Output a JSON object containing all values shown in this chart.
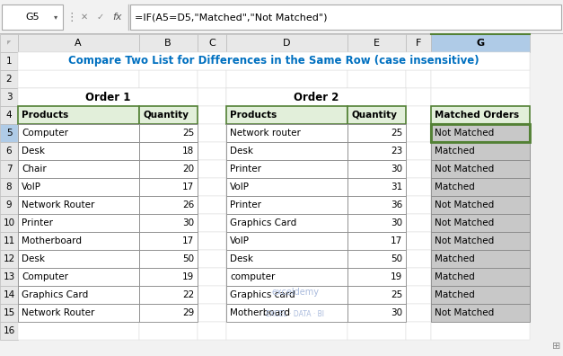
{
  "title": "Compare Two List for Differences in the Same Row (case insensitive)",
  "formula_bar_cell": "G5",
  "formula_bar_text": "=IF(A5=D5,\"Matched\",\"Not Matched\")",
  "order1_header": "Order 1",
  "order2_header": "Order 2",
  "table3_header": "Matched Orders",
  "order1_products": [
    "Computer",
    "Desk",
    "Chair",
    "VoIP",
    "Network Router",
    "Printer",
    "Motherboard",
    "Desk",
    "Computer",
    "Graphics Card",
    "Network Router"
  ],
  "order1_qty": [
    "25",
    "18",
    "20",
    "17",
    "26",
    "30",
    "17",
    "50",
    "19",
    "22",
    "29"
  ],
  "order2_products": [
    "Network router",
    "Desk",
    "Printer",
    "VoIP",
    "Printer",
    "Graphics Card",
    "VoIP",
    "Desk",
    "computer",
    "Graphics card",
    "Motherboard"
  ],
  "order2_qty": [
    "25",
    "23",
    "30",
    "31",
    "36",
    "30",
    "17",
    "50",
    "19",
    "25",
    "30"
  ],
  "matched_orders": [
    "Not Matched",
    "Matched",
    "Not Matched",
    "Matched",
    "Not Matched",
    "Not Matched",
    "Not Matched",
    "Matched",
    "Matched",
    "Matched",
    "Not Matched"
  ],
  "bg_color": "#F2F2F2",
  "header_bar_color": "#E8E8E8",
  "col_header_selected_bg": "#AFCBE7",
  "row_header_selected_bg": "#AFCBE7",
  "cell_bg": "#FFFFFF",
  "table_header_bg": "#E2EFDA",
  "table_border_color": "#538135",
  "table_data_border": "#000000",
  "title_color": "#0070C0",
  "matched_bg": "#C8C8C8",
  "matched_selected_bg": "#C6E0B4",
  "watermark_text1": "exceldemy",
  "watermark_text2": "EXCEL · DATA · BI"
}
